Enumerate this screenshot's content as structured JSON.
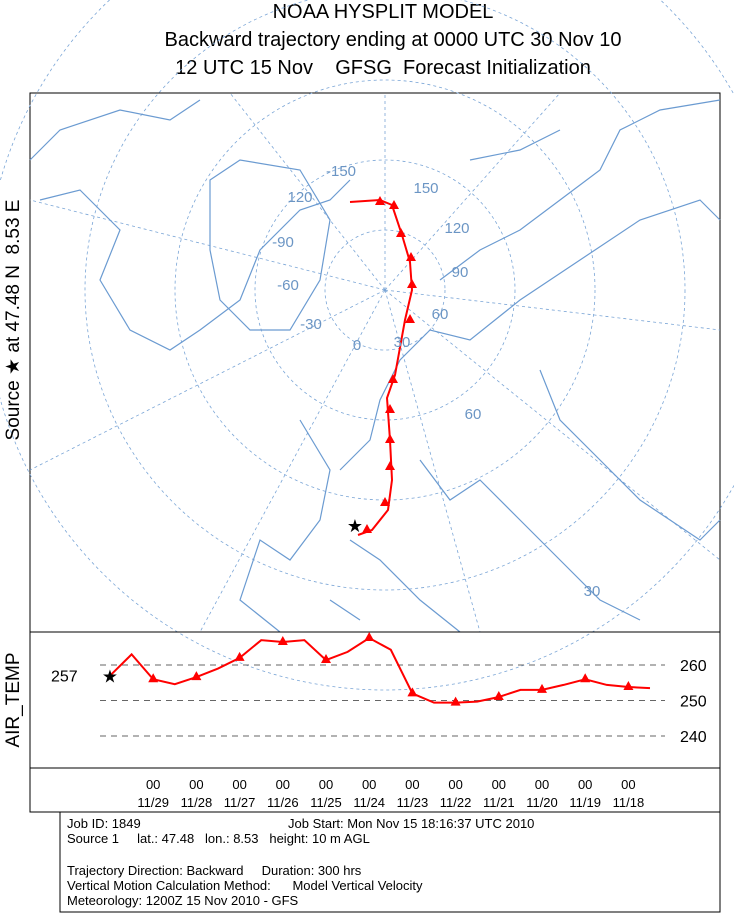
{
  "header": {
    "title": "NOAA HYSPLIT MODEL",
    "subtitle": "Backward trajectory ending at 0000 UTC 30 Nov 10",
    "subtitle2": "12 UTC 15 Nov    GFSG  Forecast Initialization"
  },
  "map": {
    "source_label": "Source ★ at 47.48 N  8.53 E",
    "grid_labels": [
      "-150",
      "150",
      "120",
      "120",
      "-90",
      "90",
      "-60",
      "60",
      "-30",
      "30",
      "0",
      "60",
      "30"
    ]
  },
  "chart_data": {
    "type": "line",
    "y_label": "AIR_TEMP",
    "start_value": 257,
    "ylim": [
      231,
      269.3
    ],
    "yticks": [
      240,
      250,
      260
    ],
    "x_ticks": [
      {
        "hour": "00",
        "date": "11/29"
      },
      {
        "hour": "00",
        "date": "11/28"
      },
      {
        "hour": "00",
        "date": "11/27"
      },
      {
        "hour": "00",
        "date": "11/26"
      },
      {
        "hour": "00",
        "date": "11/25"
      },
      {
        "hour": "00",
        "date": "11/24"
      },
      {
        "hour": "00",
        "date": "11/23"
      },
      {
        "hour": "00",
        "date": "11/22"
      },
      {
        "hour": "00",
        "date": "11/21"
      },
      {
        "hour": "00",
        "date": "11/20"
      },
      {
        "hour": "00",
        "date": "11/19"
      },
      {
        "hour": "00",
        "date": "11/18"
      }
    ],
    "series": [
      {
        "name": "AIR_TEMP",
        "color": "#ff0000",
        "values": [
          257,
          263,
          256,
          254.6,
          256.6,
          259,
          262,
          267,
          266.5,
          267,
          261.4,
          263.7,
          267.6,
          264.3,
          252,
          249.4,
          249.4,
          249.7,
          251,
          253,
          253,
          254.4,
          256,
          254.4,
          253.8,
          253.5
        ]
      }
    ]
  },
  "footer": {
    "job_id": "Job ID: 1849",
    "job_start": "Job Start: Mon Nov 15 18:16:37 UTC 2010",
    "source": "Source 1     lat.: 47.48   lon.: 8.53   height: 10 m AGL",
    "direction": "Trajectory Direction: Backward     Duration: 300 hrs",
    "vertical": "Vertical Motion Calculation Method:      Model Vertical Velocity",
    "meteorology": "Meteorology: 1200Z 15 Nov 2010 - GFS"
  }
}
